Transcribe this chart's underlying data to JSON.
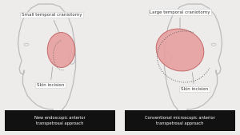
{
  "background_color": "#eeeceb",
  "panel_bg": "#eeeceb",
  "left_label": "New endoscopic anterior\ntranspetrosal approach",
  "right_label": "Conventional microscopic anterior\ntranspetrosal approach",
  "left_craniotomy_label": "Small temporal craniotomy",
  "right_craniotomy_label": "Large temporal craniotomy",
  "left_skin_label": "Skin incision",
  "right_skin_label": "Skin incision",
  "label_bg": "#111111",
  "label_text_color": "#ffffff",
  "craniotomy_fill": "#e8a0a0",
  "craniotomy_edge": "#c06060",
  "head_line_color": "#bbbbbb",
  "skin_incision_color": "#666666",
  "annotation_box_fc": "#ffffff",
  "annotation_box_ec": "#cccccc",
  "annotation_text_color": "#333333"
}
